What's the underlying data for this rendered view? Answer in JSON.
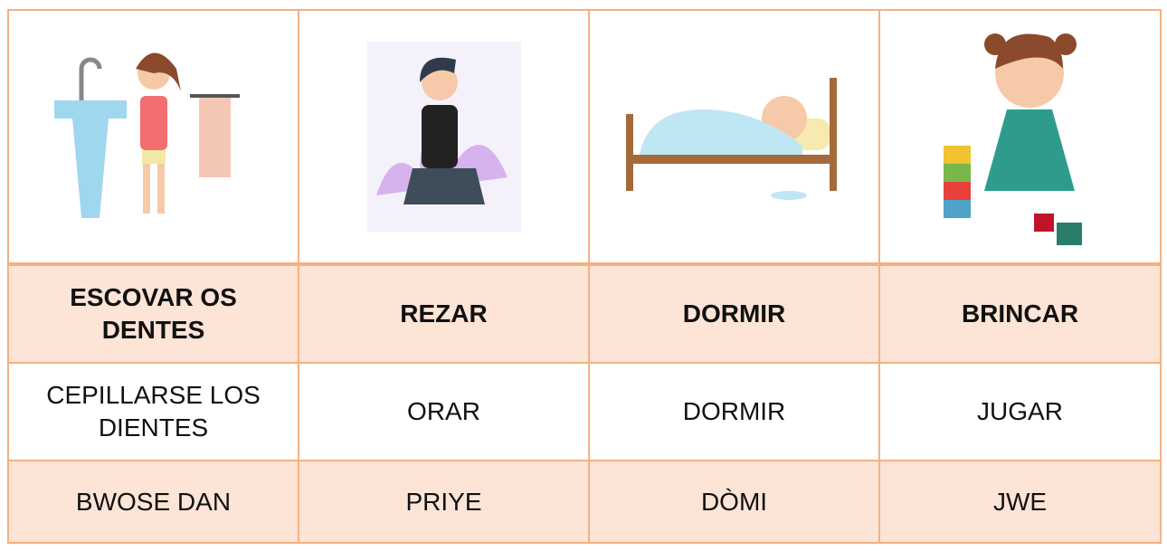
{
  "table": {
    "rows": [
      [
        "ESCOVAR OS DENTES",
        "REZAR",
        "DORMIR",
        "BRINCAR"
      ],
      [
        "CEPILLARSE LOS DIENTES",
        "ORAR",
        "DORMIR",
        "JUGAR"
      ],
      [
        "BWOSE DAN",
        "PRIYE",
        "DÒMI",
        "JWE"
      ]
    ]
  }
}
